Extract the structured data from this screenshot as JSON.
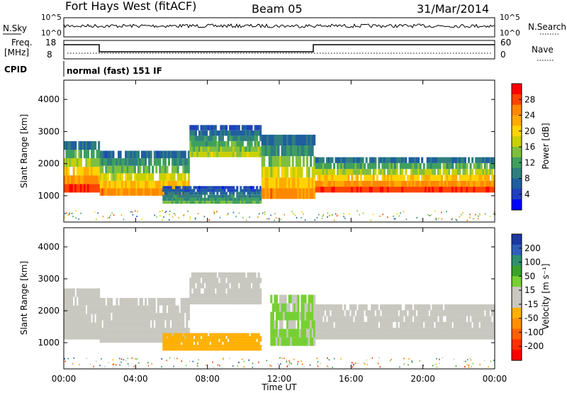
{
  "header": {
    "station": "Fort Hays West (fitACF)",
    "beam": "Beam 05",
    "date": "31/Mar/2014"
  },
  "strip_panels": {
    "nsky": {
      "label": "N.Sky",
      "ticks": [
        "10^5",
        "10^0"
      ]
    },
    "nsearch": {
      "label": "N.Search",
      "ticks": [
        "10^5",
        "10^0"
      ]
    },
    "freq": {
      "label_line1": "Freq.",
      "label_line2": "[MHz]",
      "ticks": [
        "18",
        "8"
      ]
    },
    "nave": {
      "label": "Nave",
      "ticks": [
        "60",
        "0"
      ]
    },
    "cpid": {
      "label": "CPID",
      "text": "normal (fast) 151 IF"
    }
  },
  "power_panel": {
    "ylabel": "Slant Range [km]",
    "yticks": [
      "4000",
      "3000",
      "2000",
      "1000"
    ],
    "colorbar_label": "Power [dB]",
    "colorbar_ticks": [
      "28",
      "24",
      "20",
      "16",
      "12",
      "8",
      "4"
    ],
    "colorbar_colors": [
      "#ff0000",
      "#ff4400",
      "#ff8800",
      "#ffaa00",
      "#ffd400",
      "#c8d000",
      "#7fbf3f",
      "#3f9f5f",
      "#2f7f7f",
      "#1f5f9f",
      "#1f3fbf",
      "#0000ff"
    ]
  },
  "velocity_panel": {
    "ylabel": "Slant Range [km]",
    "yticks": [
      "4000",
      "3000",
      "2000",
      "1000"
    ],
    "colorbar_label": "Velocity [m s⁻¹]",
    "colorbar_ticks": [
      "200",
      "100",
      "50",
      "15",
      "-15",
      "-50",
      "-100",
      "-200"
    ],
    "colorbar_colors": [
      "#1a3aa0",
      "#2f5fb8",
      "#2f8f6f",
      "#3aa02a",
      "#77d033",
      "#c8c8c0",
      "#c8c8c0",
      "#ffb000",
      "#ff9000",
      "#ff6000",
      "#ff3000",
      "#ff0000"
    ]
  },
  "xaxis": {
    "label": "Time UT",
    "ticks": [
      "00:00",
      "04:00",
      "08:00",
      "12:00",
      "16:00",
      "20:00",
      "00:00"
    ]
  },
  "chart_data": [
    {
      "type": "heatmap",
      "title": "Power",
      "xlabel": "Time UT",
      "ylabel": "Slant Range [km]",
      "x_range_hours": [
        0,
        24
      ],
      "ylim": [
        180,
        4600
      ],
      "colorbar": {
        "label": "Power [dB]",
        "range": [
          0,
          30
        ]
      },
      "echo_bands": [
        {
          "t_start": 0.0,
          "t_end": 2.0,
          "range_low": 1100,
          "range_high": 2700,
          "peak_power_db": 28
        },
        {
          "t_start": 2.0,
          "t_end": 7.0,
          "range_low": 1000,
          "range_high": 2400,
          "peak_power_db": 24
        },
        {
          "t_start": 7.0,
          "t_end": 11.0,
          "range_low": 2200,
          "range_high": 3200,
          "peak_power_db": 16
        },
        {
          "t_start": 5.5,
          "t_end": 11.0,
          "range_low": 750,
          "range_high": 1300,
          "peak_power_db": 12
        },
        {
          "t_start": 11.0,
          "t_end": 14.0,
          "range_low": 900,
          "range_high": 2900,
          "peak_power_db": 24
        },
        {
          "t_start": 14.0,
          "t_end": 24.0,
          "range_low": 1100,
          "range_high": 2200,
          "peak_power_db": 28
        }
      ]
    },
    {
      "type": "heatmap",
      "title": "Velocity",
      "xlabel": "Time UT",
      "ylabel": "Slant Range [km]",
      "x_range_hours": [
        0,
        24
      ],
      "ylim": [
        180,
        4600
      ],
      "colorbar": {
        "label": "Velocity [m s⁻¹]",
        "range": [
          -200,
          200
        ]
      },
      "echo_bands": [
        {
          "t_start": 0.0,
          "t_end": 2.0,
          "range_low": 1100,
          "range_high": 2700,
          "velocity": 0
        },
        {
          "t_start": 2.0,
          "t_end": 7.0,
          "range_low": 1000,
          "range_high": 2400,
          "velocity": 0
        },
        {
          "t_start": 7.0,
          "t_end": 11.0,
          "range_low": 2200,
          "range_high": 3200,
          "velocity": 0
        },
        {
          "t_start": 5.5,
          "t_end": 11.0,
          "range_low": 750,
          "range_high": 1300,
          "velocity": -60
        },
        {
          "t_start": 11.5,
          "t_end": 14.0,
          "range_low": 900,
          "range_high": 2500,
          "velocity": 40
        },
        {
          "t_start": 14.0,
          "t_end": 24.0,
          "range_low": 1100,
          "range_high": 2200,
          "velocity": 0
        }
      ]
    }
  ]
}
